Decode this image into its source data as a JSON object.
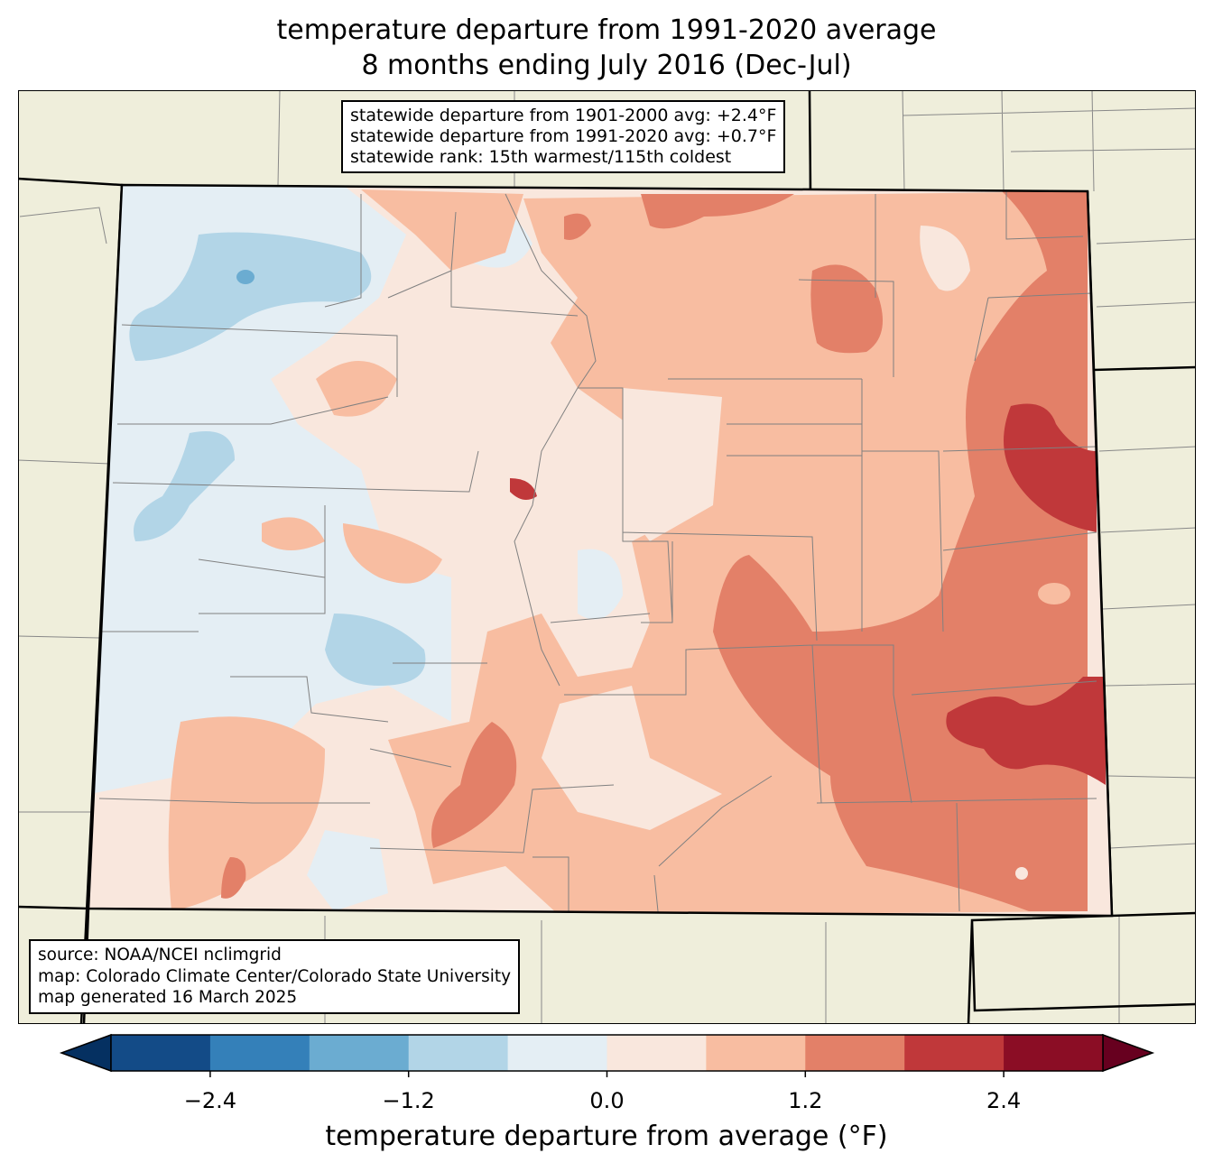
{
  "title": {
    "line1": "temperature departure from 1991-2020 average",
    "line2": "8 months ending July 2016 (Dec-Jul)"
  },
  "stats_box": {
    "line1": "statewide departure from 1901-2000 avg: +2.4°F",
    "line2": "statewide departure from 1991-2020 avg: +0.7°F",
    "line3": "statewide rank: 15th warmest/115th coldest"
  },
  "credits_box": {
    "line1": "source: NOAA/NCEI nclimgrid",
    "line2": "map: Colorado Climate Center/Colorado State University",
    "line3": "map generated 16 March 2025"
  },
  "chart_data": {
    "type": "heatmap",
    "region": "Colorado",
    "title": "temperature departure from 1991-2020 average / 8 months ending July 2016 (Dec-Jul)",
    "colorbar": {
      "label": "temperature departure from average (°F)",
      "levels": [
        -3.0,
        -2.4,
        -1.8,
        -1.2,
        -0.6,
        0.0,
        0.6,
        1.2,
        1.8,
        2.4,
        3.0
      ],
      "colors": [
        "#134b87",
        "#3480b9",
        "#6bacd1",
        "#b2d5e7",
        "#e4eef4",
        "#f9e7dd",
        "#f8bda1",
        "#e38068",
        "#c0383a",
        "#8b0d25"
      ],
      "extend_low_color": "#053061",
      "extend_high_color": "#67001f",
      "ticks": [
        -2.4,
        -1.2,
        0.0,
        1.2,
        2.4
      ],
      "tick_labels": [
        "−2.4",
        "−1.2",
        "0.0",
        "1.2",
        "2.4"
      ]
    },
    "summary": {
      "west": "0 to -1.2 (cooler, light blue) in northwest and west-central mountains",
      "central": "0 to +1.2",
      "east": "+1.2 to +2.4 (warmest in far east/southeast plains)"
    }
  }
}
